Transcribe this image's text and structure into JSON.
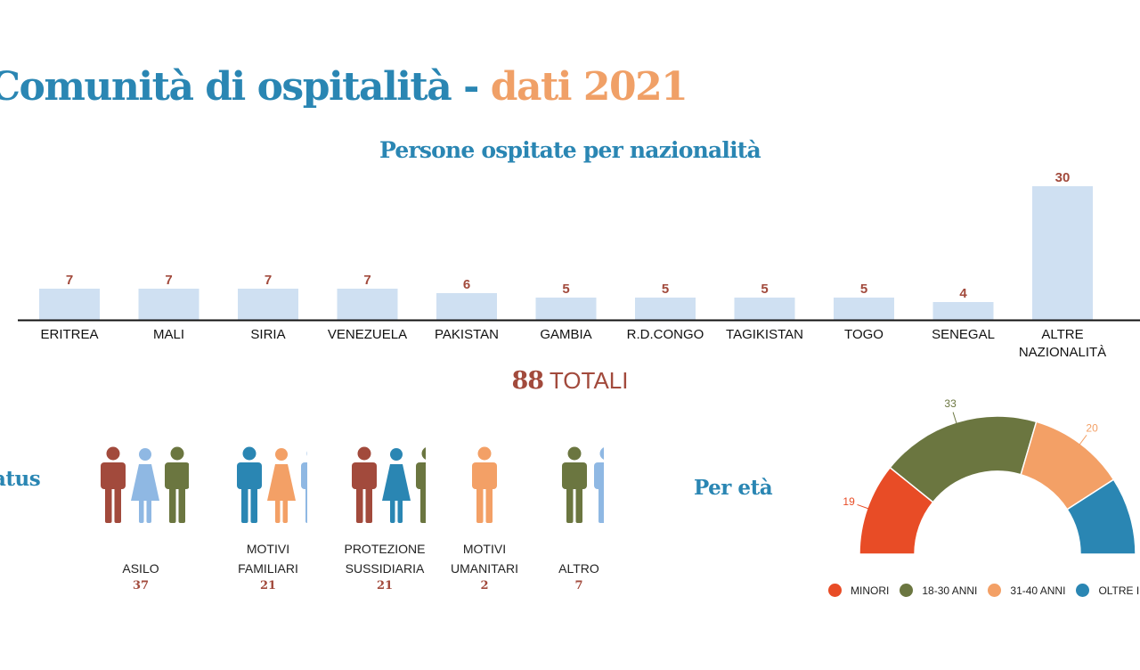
{
  "header": {
    "title_main": "Comunità di ospitalità",
    "title_sep": "-",
    "title_accent": "dati 2021"
  },
  "colors": {
    "title_blue": "#2a86b3",
    "title_orange": "#f0a067",
    "bar_fill": "#cfe0f2",
    "value_red": "#a24a3c"
  },
  "chart_data": [
    {
      "type": "bar",
      "title": "Persone ospitate per nazionalità",
      "categories": [
        "ERITREA",
        "MALI",
        "SIRIA",
        "VENEZUELA",
        "PAKISTAN",
        "GAMBIA",
        "R.D.CONGO",
        "TAGIKISTAN",
        "TOGO",
        "SENEGAL",
        "ALTRE NAZIONALITÀ"
      ],
      "values": [
        7,
        7,
        7,
        7,
        6,
        5,
        5,
        5,
        5,
        4,
        30
      ],
      "xlabel": "",
      "ylabel": "",
      "ylim": [
        0,
        30
      ],
      "grid": false
    },
    {
      "type": "pie",
      "variant": "half-donut",
      "title": "Per età",
      "categories": [
        "MINORI",
        "18-30 ANNI",
        "31-40 ANNI",
        "OLTRE I"
      ],
      "values": [
        19,
        33,
        20,
        16
      ],
      "value_labels": [
        "19",
        "33",
        "20",
        ""
      ],
      "colors": [
        "#e84c26",
        "#6b7640",
        "#f3a066",
        "#2a86b3"
      ],
      "legend": "bottom"
    }
  ],
  "totals": {
    "number": "88",
    "label": "TOTALI"
  },
  "status": {
    "heading": "atus",
    "groups": [
      {
        "label": "ASILO",
        "value": "37",
        "figures": [
          {
            "color": "#a24a3c",
            "gender": "m"
          },
          {
            "color": "#8fb8e3",
            "gender": "f"
          },
          {
            "color": "#6b7640",
            "gender": "m"
          }
        ]
      },
      {
        "label": "MOTIVI\nFAMILIARI",
        "value": "21",
        "figures": [
          {
            "color": "#2a86b3",
            "gender": "m"
          },
          {
            "color": "#f3a066",
            "gender": "f"
          },
          {
            "color": "#8fb8e3",
            "gender": "m"
          }
        ]
      },
      {
        "label": "PROTEZIONE\nSUSSIDIARIA",
        "value": "21",
        "figures": [
          {
            "color": "#a24a3c",
            "gender": "m"
          },
          {
            "color": "#2a86b3",
            "gender": "f"
          },
          {
            "color": "#6b7640",
            "gender": "m"
          }
        ]
      },
      {
        "label": "MOTIVI\nUMANITARI",
        "value": "2",
        "figures": [
          {
            "color": "#f3a066",
            "gender": "m"
          }
        ]
      },
      {
        "label": "ALTRO",
        "value": "7",
        "figures": [
          {
            "color": "#6b7640",
            "gender": "m"
          },
          {
            "color": "#8fb8e3",
            "gender": "m"
          }
        ]
      }
    ]
  },
  "age": {
    "heading": "Per età"
  }
}
